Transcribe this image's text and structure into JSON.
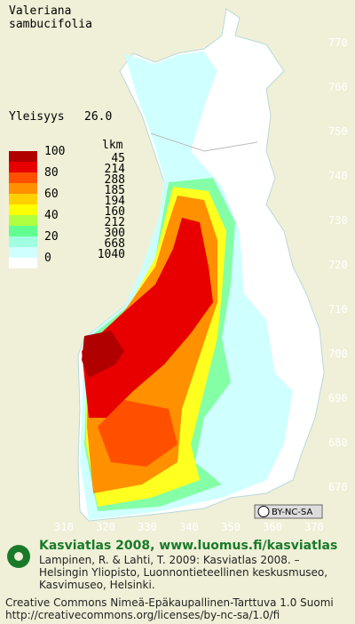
{
  "title": [
    "Valeriana",
    "sambucifolia"
  ],
  "frequency": {
    "label": "Yleisyys",
    "value": "26.0"
  },
  "legend": {
    "count_header": "lkm",
    "class_labels": [
      100,
      80,
      60,
      40,
      20,
      0
    ],
    "counts": [
      45,
      214,
      288,
      185,
      194,
      160,
      212,
      300,
      668,
      1040
    ],
    "colors": [
      "#b00000",
      "#e80000",
      "#ff5000",
      "#ff9000",
      "#ffd000",
      "#ffff00",
      "#b0ff40",
      "#60ff90",
      "#a0ffe0",
      "#d0ffff",
      "#ffffff"
    ]
  },
  "northing_labels": [
    770,
    760,
    750,
    740,
    730,
    720,
    710,
    700,
    690,
    680,
    670
  ],
  "easting_labels": [
    310,
    320,
    330,
    340,
    350,
    360,
    370
  ],
  "license_badge": "BY-NC-SA",
  "footer": {
    "atlas": "Kasviatlas 2008, www.luomus.fi/kasviatlas",
    "citation": [
      "Lampinen, R. & Lahti, T. 2009: Kasviatlas 2008. –",
      "Helsingin Yliopisto, Luonnontieteellinen keskusmuseo,",
      "Kasvimuseo, Helsinki."
    ],
    "license": [
      "Creative Commons Nimeä-Epäkaupallinen-Tarttuva 1.0 Suomi",
      "http://creativecommons.org/licenses/by-nc-sa/1.0/fi"
    ]
  }
}
